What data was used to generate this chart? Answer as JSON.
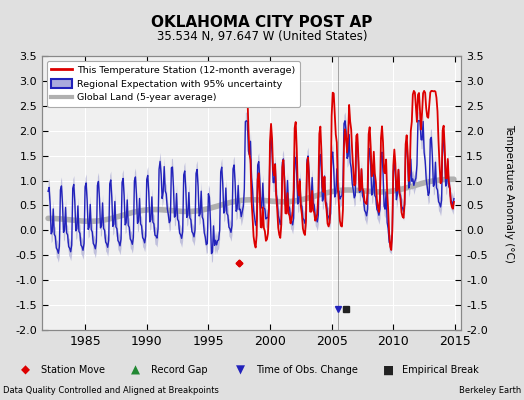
{
  "title": "OKLAHOMA CITY POST AP",
  "subtitle": "35.534 N, 97.647 W (United States)",
  "ylabel": "Temperature Anomaly (°C)",
  "footer_left": "Data Quality Controlled and Aligned at Breakpoints",
  "footer_right": "Berkeley Earth",
  "xlim": [
    1981.5,
    2015.5
  ],
  "ylim": [
    -2.0,
    3.5
  ],
  "yticks": [
    -2.0,
    -1.5,
    -1.0,
    -0.5,
    0.0,
    0.5,
    1.0,
    1.5,
    2.0,
    2.5,
    3.0,
    3.5
  ],
  "xticks": [
    1985,
    1990,
    1995,
    2000,
    2005,
    2010,
    2015
  ],
  "bg_color": "#e0e0e0",
  "plot_bg_color": "#f0f0f0",
  "grid_color": "#ffffff",
  "red_line_color": "#dd0000",
  "blue_line_color": "#2222bb",
  "blue_fill_color": "#9999cc",
  "gray_line_color": "#b0b0b0",
  "station_move_x": 1997.5,
  "station_move_y": -0.65,
  "time_obs_x": 2005.5,
  "time_obs_y": -1.58,
  "empirical_break_x": 2006.2,
  "empirical_break_y": -1.58
}
